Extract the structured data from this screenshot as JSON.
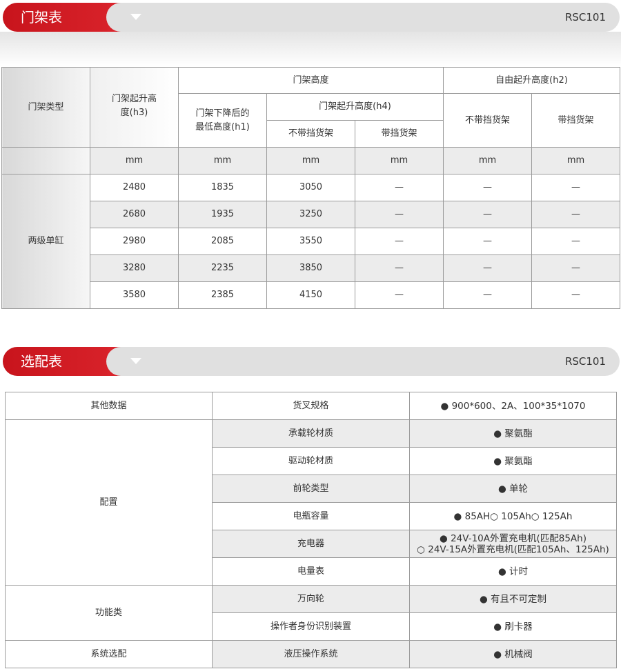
{
  "mast_section": {
    "title": "门架表",
    "model": "RSC101",
    "headers": {
      "type": "门架类型",
      "h3": "门架起升高度(h3)",
      "mast_height": "门架高度",
      "h1": "门架下降后的最低高度(h1)",
      "h4": "门架起升高度(h4)",
      "h4_no": "不带挡货架",
      "h4_with": "带挡货架",
      "h2": "自由起升高度(h2)",
      "h2_no": "不带挡货架",
      "h2_with": "带挡货架",
      "unit": "mm"
    },
    "type_value": "两级单缸",
    "rows": [
      [
        "2480",
        "1835",
        "3050",
        "—",
        "—",
        "—"
      ],
      [
        "2680",
        "1935",
        "3250",
        "—",
        "—",
        "—"
      ],
      [
        "2980",
        "2085",
        "3550",
        "—",
        "—",
        "—"
      ],
      [
        "3280",
        "2235",
        "3850",
        "—",
        "—",
        "—"
      ],
      [
        "3580",
        "2385",
        "4150",
        "—",
        "—",
        "—"
      ]
    ]
  },
  "option_section": {
    "title": "选配表",
    "model": "RSC101",
    "rows": [
      {
        "group": "其他数据",
        "item": "货叉规格",
        "value": "● 900*600、2A、100*35*1070"
      },
      {
        "group": "配置",
        "item": "承载轮材质",
        "value": "● 聚氨酯"
      },
      {
        "item": "驱动轮材质",
        "value": "● 聚氨酯"
      },
      {
        "item": "前轮类型",
        "value": "● 单轮"
      },
      {
        "item": "电瓶容量",
        "value": "● 85AH○ 105Ah○ 125Ah"
      },
      {
        "item": "充电器",
        "value": "● 24V-10A外置充电机(匹配85Ah)",
        "value2": "○ 24V-15A外置充电机(匹配105Ah、125Ah)"
      },
      {
        "item": "电量表",
        "value": "● 计时"
      },
      {
        "group": "功能类",
        "item": "万向轮",
        "value": "● 有且不可定制"
      },
      {
        "item": "操作者身份识别装置",
        "value": "● 刷卡器"
      },
      {
        "group": "系统选配",
        "item": "液压操作系统",
        "value": "● 机械阀"
      }
    ]
  }
}
